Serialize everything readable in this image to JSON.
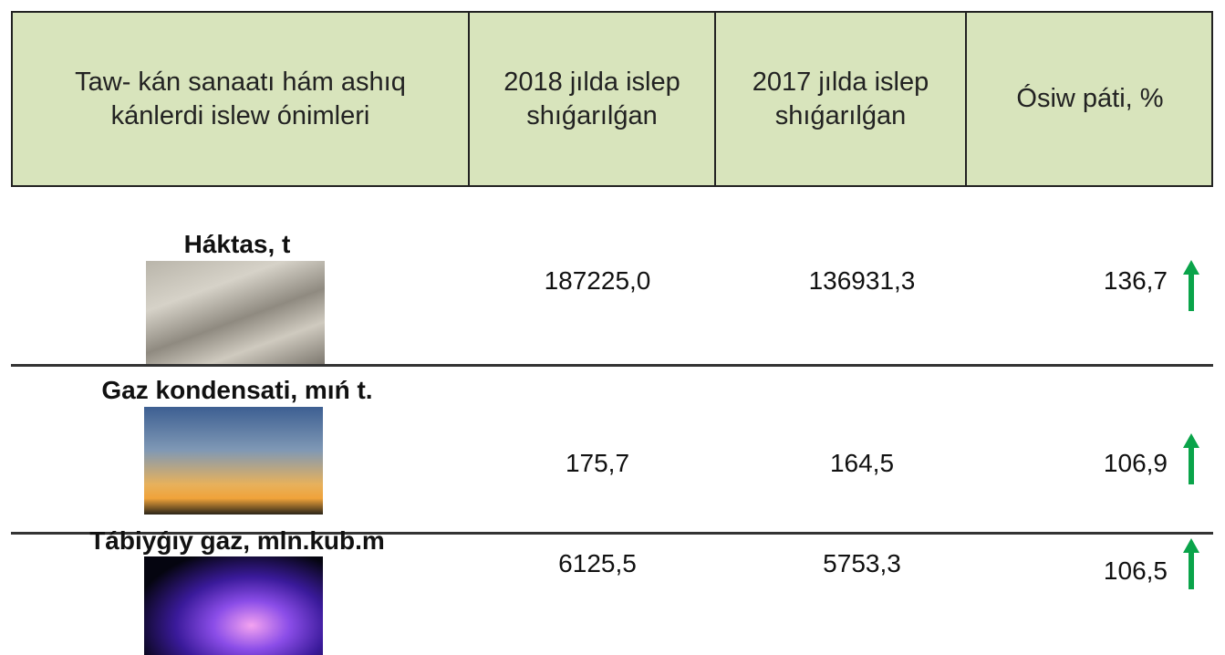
{
  "table": {
    "header": [
      "Taw- kán sanaatı hám ashıq kánlerdi islew ónimleri",
      "2018 jılda islep shıǵarılǵan",
      "2017 jılda islep shıǵarılǵan",
      "Ósiw páti, %"
    ],
    "rows": [
      [
        "Háktas, t",
        "187225,0",
        "136931,3",
        "136,7"
      ],
      [
        "Gaz kondensati, mıń t.",
        "175,7",
        "164,5",
        "106,9"
      ],
      [
        "Tábiyǵıy gaz, mln.kub.m",
        "6125,5",
        "5753,3",
        "106,5"
      ]
    ]
  }
}
